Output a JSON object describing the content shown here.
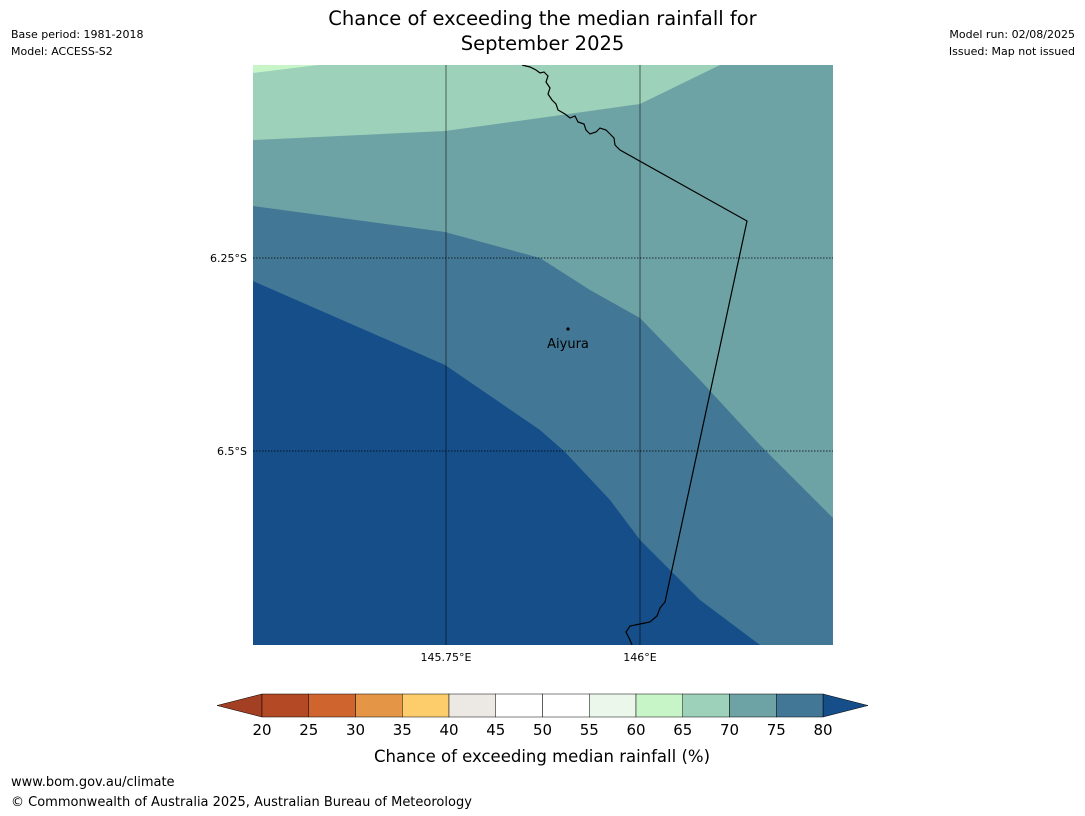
{
  "header": {
    "title_line1": "Chance of exceeding the median rainfall for",
    "title_line2": "September 2025",
    "base_period": "Base period: 1981-2018",
    "model": "Model: ACCESS-S2",
    "model_run": "Model run: 02/08/2025",
    "issued": "Issued: Map not issued"
  },
  "map": {
    "lon_ticks": [
      "145.75°E",
      "146°E"
    ],
    "lat_ticks": [
      "6.25°S",
      "6.5°S"
    ],
    "place_label": "Aiyura",
    "colors": {
      "light_green": "#c8f5c8",
      "green_65_70": "#9dd1b9",
      "teal_70_75": "#6ea3a6",
      "blue_75_80": "#427896",
      "blue_80_plus": "#154e88",
      "border": "#000000"
    }
  },
  "colorbar": {
    "label": "Chance of exceeding median rainfall (%)",
    "ticks": [
      "20",
      "25",
      "30",
      "35",
      "40",
      "45",
      "50",
      "55",
      "60",
      "65",
      "70",
      "75",
      "80"
    ],
    "colors": [
      "#b34a25",
      "#d0642f",
      "#e49646",
      "#fdcd6b",
      "#ece8e4",
      "#ffffff",
      "#ffffff",
      "#eaf7ea",
      "#c8f5c8",
      "#9dd1b9",
      "#6ea3a6",
      "#427896"
    ],
    "under_color": "#a33f22",
    "over_color": "#154e88"
  },
  "footer": {
    "url": "www.bom.gov.au/climate",
    "copyright": "© Commonwealth of Australia 2025, Australian Bureau of Meteorology"
  }
}
